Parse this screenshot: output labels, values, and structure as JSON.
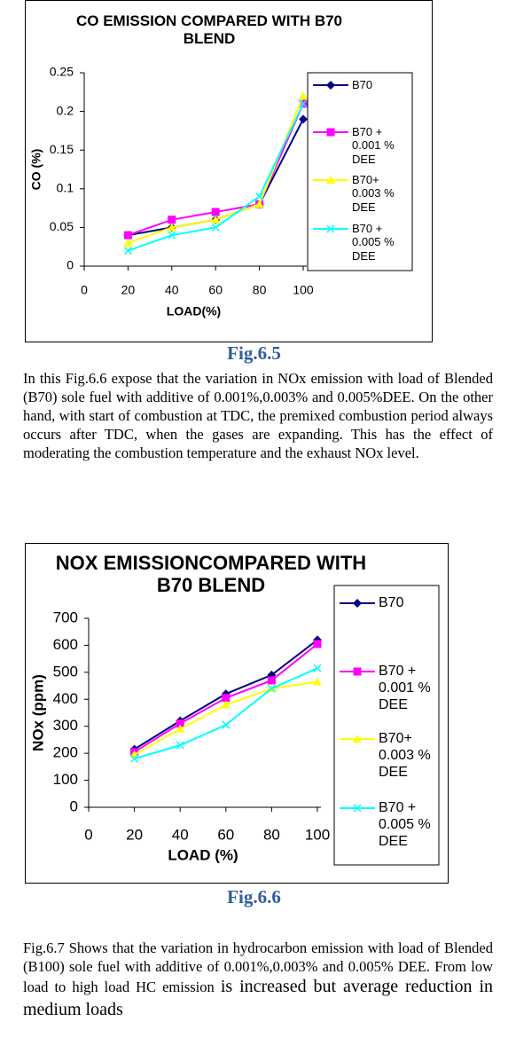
{
  "chart_data": [
    {
      "type": "line",
      "title": "CO EMISSION COMPARED WITH B70 BLEND",
      "x_label": "LOAD(%)",
      "y_label": "CO (%)",
      "x": [
        20,
        40,
        60,
        80,
        100
      ],
      "xlim": [
        0,
        100
      ],
      "xticks": [
        0,
        20,
        40,
        60,
        80,
        100
      ],
      "ylim": [
        0,
        0.25
      ],
      "yticks": [
        0,
        0.05,
        0.1,
        0.15,
        0.2,
        0.25
      ],
      "legend": "right",
      "series": [
        {
          "name": "B70",
          "color": "#000080",
          "marker": "diamond",
          "values": [
            0.04,
            0.05,
            0.06,
            0.08,
            0.19
          ]
        },
        {
          "name": "B70 + 0.001 % DEE",
          "color": "#ff00ff",
          "marker": "square",
          "values": [
            0.04,
            0.06,
            0.07,
            0.08,
            0.21
          ]
        },
        {
          "name": "B70+ 0.003 % DEE",
          "color": "#ffff00",
          "marker": "triangle",
          "values": [
            0.03,
            0.05,
            0.06,
            0.08,
            0.22
          ]
        },
        {
          "name": "B70 + 0.005 % DEE",
          "color": "#00ffff",
          "marker": "x",
          "values": [
            0.02,
            0.04,
            0.05,
            0.09,
            0.21
          ]
        }
      ]
    },
    {
      "type": "line",
      "title": "NOX EMISSIONCOMPARED WITH B70 BLEND",
      "x_label": "LOAD (%)",
      "y_label": "NOx (ppm)",
      "x": [
        20,
        40,
        60,
        80,
        100
      ],
      "xlim": [
        0,
        100
      ],
      "xticks": [
        0,
        20,
        40,
        60,
        80,
        100
      ],
      "ylim": [
        0,
        700
      ],
      "yticks": [
        0,
        100,
        200,
        300,
        400,
        500,
        600,
        700
      ],
      "legend": "right",
      "series": [
        {
          "name": "B70",
          "color": "#000080",
          "marker": "diamond",
          "values": [
            215,
            320,
            420,
            490,
            620
          ]
        },
        {
          "name": "B70 + 0.001 % DEE",
          "color": "#ff00ff",
          "marker": "square",
          "values": [
            205,
            310,
            405,
            470,
            605
          ]
        },
        {
          "name": "B70+ 0.003 % DEE",
          "color": "#ffff00",
          "marker": "triangle",
          "values": [
            195,
            290,
            380,
            440,
            465
          ]
        },
        {
          "name": "B70 + 0.005 % DEE",
          "color": "#00ffff",
          "marker": "x",
          "values": [
            180,
            230,
            305,
            440,
            515
          ]
        }
      ]
    }
  ],
  "document": {
    "caption_1": "Fig.6.5",
    "paragraph_1": "In this Fig.6.6 expose that the variation in NOx emission with load of Blended (B70) sole fuel with additive of 0.001%,0.003% and  0.005%DEE. On the other hand, with start of combustion at TDC, the premixed combustion period always occurs after TDC, when the gases are expanding.  This has the effect of moderating the combustion temperature and the exhaust NOx level.",
    "caption_2": "Fig.6.6",
    "paragraph_2": [
      "Fig.6.7 Shows that the variation in hydrocarbon emission with load of Blended (B100) sole fuel with additive of 0.001%,0.003% and  0.005% DEE.  From  low load to high load HC emission",
      "is increased but average reduction in medium loads"
    ]
  }
}
